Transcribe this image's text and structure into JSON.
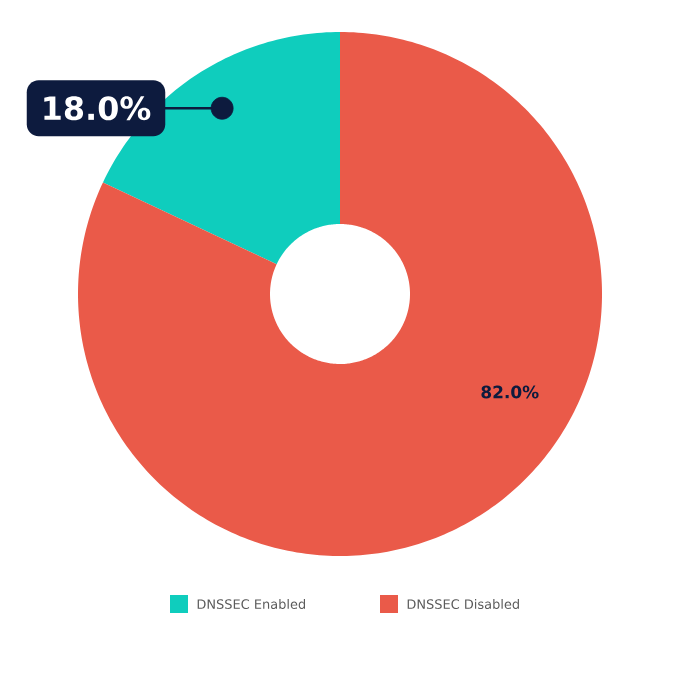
{
  "chart_data": {
    "type": "donut",
    "categories": [
      "DNSSEC Enabled",
      "DNSSEC Disabled"
    ],
    "values": [
      18.0,
      82.0
    ],
    "colors": [
      "#0fcdbd",
      "#ea5a49"
    ],
    "value_labels": [
      "18.0%",
      "82.0%"
    ],
    "legend": "bottom"
  }
}
